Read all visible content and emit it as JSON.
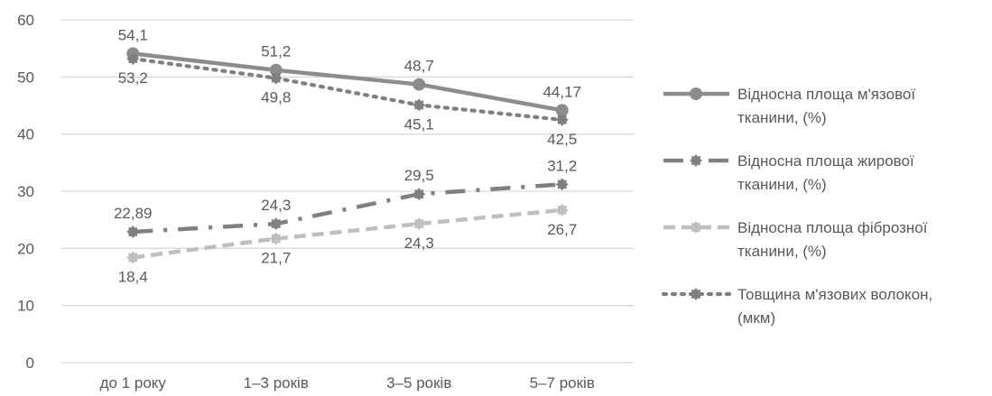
{
  "chart_data": {
    "type": "line",
    "categories": [
      "до 1 року",
      "1–3 років",
      "3–5 років",
      "5–7 років"
    ],
    "ylim": [
      0,
      60
    ],
    "yticks": [
      0,
      10,
      20,
      30,
      40,
      50,
      60
    ],
    "grid": true,
    "legend_position": "right",
    "series": [
      {
        "name": "Відносна площа м'язової тканини, (%)",
        "legend_lines": [
          "Відносна площа м'язової",
          "тканини, (%)"
        ],
        "values": [
          54.1,
          51.2,
          48.7,
          44.17
        ],
        "labels": [
          "54,1",
          "51,2",
          "48,7",
          "44,17"
        ],
        "label_pos": [
          "above",
          "above",
          "above",
          "above"
        ],
        "color": "#8c8c8c",
        "style": "solid",
        "marker": "circle"
      },
      {
        "name": "Відносна площа жирової тканини, (%)",
        "legend_lines": [
          "Відносна площа жирової",
          "тканини, (%)"
        ],
        "values": [
          22.89,
          24.3,
          29.5,
          31.2
        ],
        "labels": [
          "22,89",
          "24,3",
          "29,5",
          "31,2"
        ],
        "label_pos": [
          "above",
          "above",
          "above",
          "above"
        ],
        "color": "#808080",
        "style": "longdashdot",
        "marker": "gear"
      },
      {
        "name": "Відносна площа фіброзної тканини, (%)",
        "legend_lines": [
          "Відносна площа фіброзної",
          "тканини, (%)"
        ],
        "values": [
          18.4,
          21.7,
          24.3,
          26.7
        ],
        "labels": [
          "18,4",
          "21,7",
          "24,3",
          "26,7"
        ],
        "label_pos": [
          "below",
          "below",
          "below",
          "below"
        ],
        "color": "#bfbfbf",
        "style": "dash",
        "marker": "gear"
      },
      {
        "name": "Товщина м'язових волокон, (мкм)",
        "legend_lines": [
          "Товщина м'язових волокон,",
          "(мкм)"
        ],
        "values": [
          53.2,
          49.8,
          45.1,
          42.5
        ],
        "labels": [
          "53,2",
          "49,8",
          "45,1",
          "42,5"
        ],
        "label_pos": [
          "below",
          "below",
          "below",
          "below"
        ],
        "color": "#7f7f7f",
        "style": "dot",
        "marker": "gear"
      }
    ]
  }
}
